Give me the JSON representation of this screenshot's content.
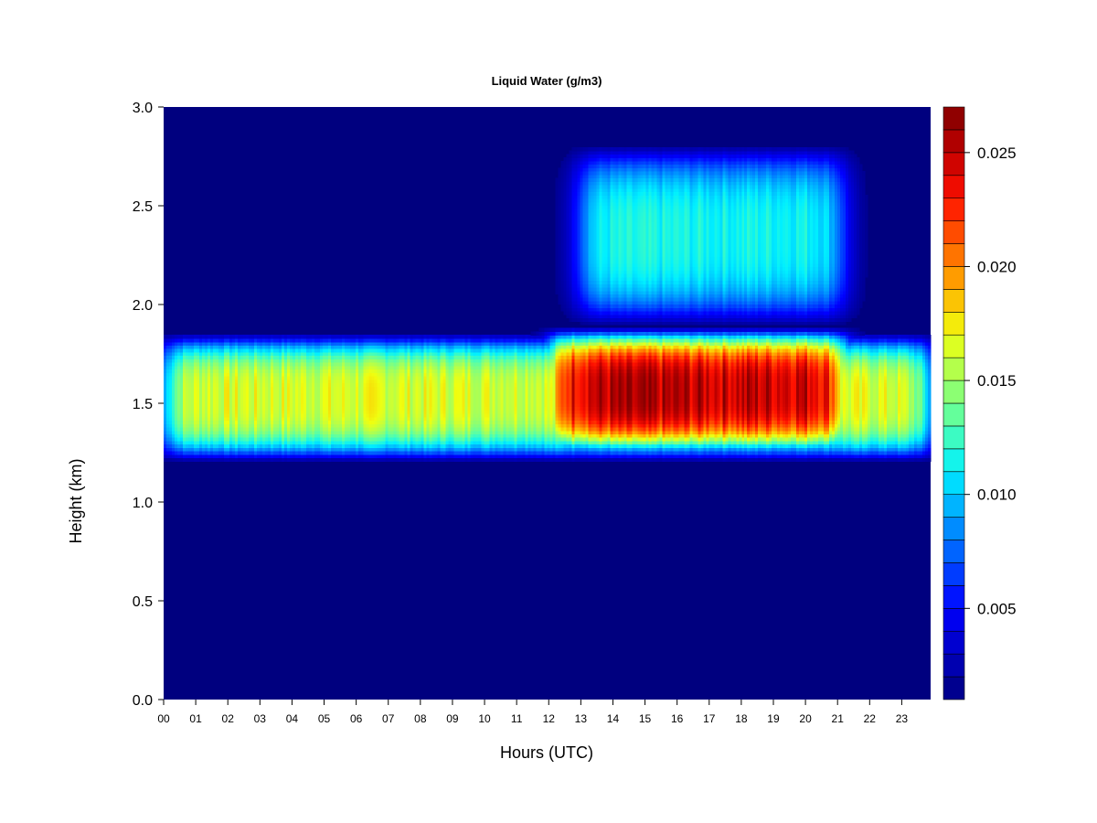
{
  "chart_data": {
    "type": "heatmap",
    "title": "Liquid Water (g/m3)",
    "xlabel": "Hours (UTC)",
    "ylabel": "Height (km)",
    "x_ticks": [
      "00",
      "01",
      "02",
      "03",
      "04",
      "05",
      "06",
      "07",
      "08",
      "09",
      "10",
      "11",
      "12",
      "13",
      "14",
      "15",
      "16",
      "17",
      "18",
      "19",
      "20",
      "21",
      "22",
      "23"
    ],
    "y_ticks": [
      "0.0",
      "0.5",
      "1.0",
      "1.5",
      "2.0",
      "2.5",
      "3.0"
    ],
    "colorbar_ticks": [
      "0.005",
      "0.010",
      "0.015",
      "0.020",
      "0.025"
    ],
    "xlim": [
      0,
      23.9
    ],
    "ylim": [
      0,
      3.0
    ],
    "zlim": [
      0.001,
      0.027
    ],
    "colorbar_levels": 26,
    "colormap": [
      "#00007f",
      "#0000c0",
      "#0000ff",
      "#0050ff",
      "#00a0ff",
      "#00f0ff",
      "#50ffaf",
      "#a0ff5f",
      "#f0ff0f",
      "#ffb000",
      "#ff6000",
      "#ff1000",
      "#c00000",
      "#800000"
    ],
    "background_color": "#00007f",
    "layers": [
      {
        "name": "main cloud layer",
        "x_start": 0.0,
        "x_end": 23.9,
        "base_km": 1.2,
        "top_km": 1.85,
        "peak_km": 1.53,
        "peak_value": 0.0165
      },
      {
        "name": "intensified core",
        "x_start": 12.0,
        "x_end": 21.3,
        "base_km": 1.2,
        "top_km": 1.85,
        "peak_km": 1.56,
        "peak_value": 0.025
      },
      {
        "name": "upper cloud layer",
        "x_start": 12.9,
        "x_end": 21.2,
        "base_km": 1.8,
        "top_km": 2.72,
        "peak_km": 2.35,
        "peak_value": 0.0115
      }
    ]
  }
}
